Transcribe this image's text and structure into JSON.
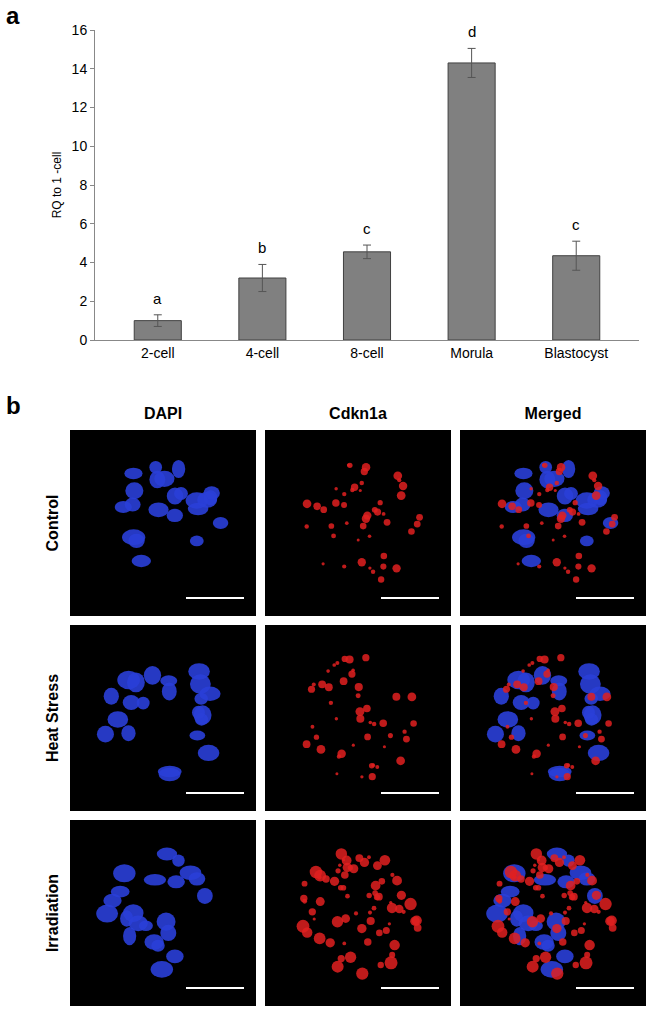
{
  "chart_data": {
    "type": "bar",
    "panel_label": "a",
    "y_label": "RQ to 1 -cell",
    "categories": [
      "2-cell",
      "4-cell",
      "8-cell",
      "Morula",
      "Blastocyst"
    ],
    "values": [
      1.0,
      3.2,
      4.55,
      14.3,
      4.35
    ],
    "errors": [
      0.3,
      0.7,
      0.35,
      0.75,
      0.75
    ],
    "group_labels": [
      "a",
      "b",
      "c",
      "d",
      "c"
    ],
    "color": "#808080",
    "ylim": [
      0,
      16
    ],
    "yticks": [
      0,
      2,
      4,
      6,
      8,
      10,
      12,
      14,
      16
    ],
    "grid": false
  },
  "image_panel": {
    "panel_label": "b",
    "columns": [
      "DAPI",
      "Cdkn1a",
      "Merged"
    ],
    "rows": [
      "Control",
      "Heat Stress",
      "Irradiation"
    ]
  }
}
